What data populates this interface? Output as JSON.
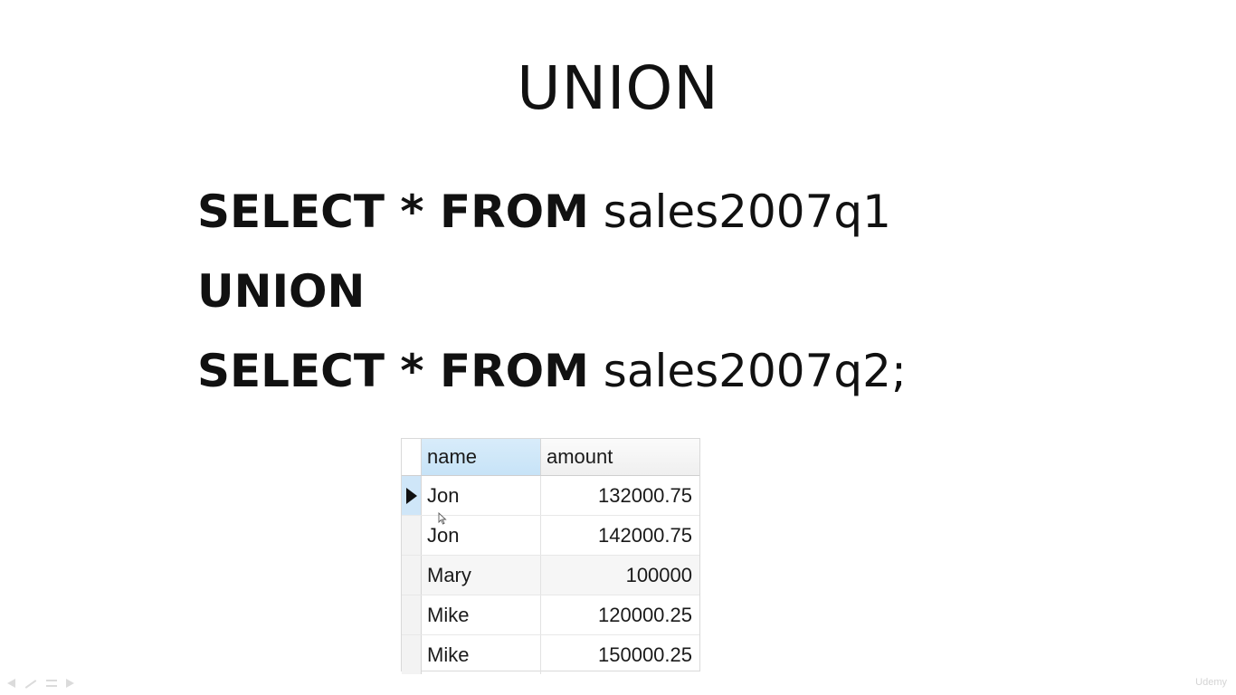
{
  "slide": {
    "title": "UNION",
    "code_lines": [
      {
        "keywords": "SELECT * FROM",
        "rest": " sales2007q1"
      },
      {
        "keywords": "UNION",
        "rest": ""
      },
      {
        "keywords": "SELECT * FROM",
        "rest": " sales2007q2;"
      }
    ]
  },
  "result_grid": {
    "columns": [
      "name",
      "amount"
    ],
    "rows": [
      {
        "name": "Jon",
        "amount": "132000.75"
      },
      {
        "name": "Jon",
        "amount": "142000.75"
      },
      {
        "name": "Mary",
        "amount": "100000"
      },
      {
        "name": "Mike",
        "amount": "120000.25"
      },
      {
        "name": "Mike",
        "amount": "150000.25"
      }
    ],
    "current_row_index": 0
  },
  "controls": {
    "icons": [
      "previous-slide-icon",
      "pen-icon",
      "menu-icon",
      "next-slide-icon"
    ]
  },
  "watermark": {
    "text": "Udemy"
  }
}
